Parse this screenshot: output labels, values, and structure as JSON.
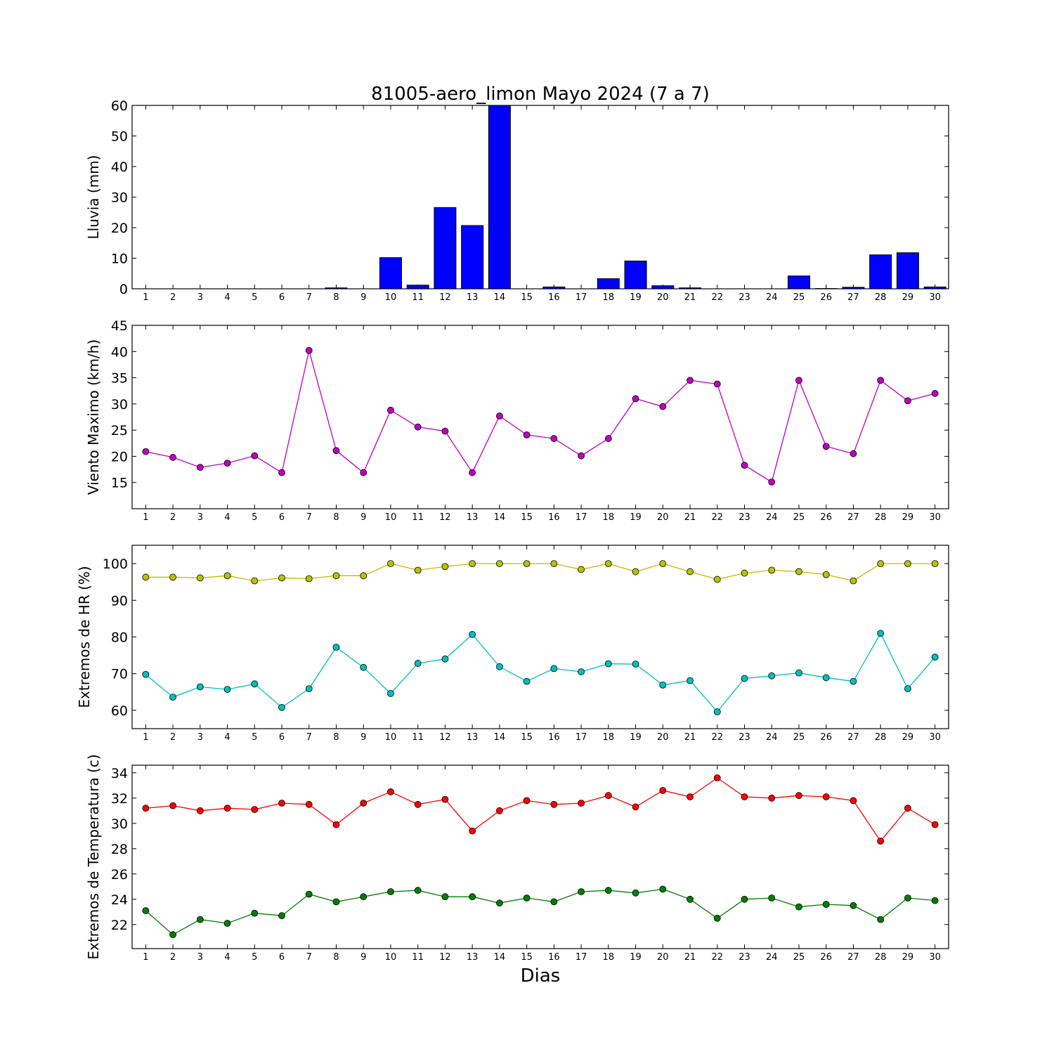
{
  "title": "81005-aero_limon Mayo 2024  (7 a 7)",
  "xlabel": "Dias",
  "chart_data": [
    {
      "type": "bar",
      "ylabel": "Lluvia (mm)",
      "ylim": [
        0,
        60
      ],
      "yticks": [
        0,
        10,
        20,
        30,
        40,
        50,
        60
      ],
      "categories": [
        "1",
        "2",
        "3",
        "4",
        "5",
        "6",
        "7",
        "8",
        "9",
        "10",
        "11",
        "12",
        "13",
        "14",
        "15",
        "16",
        "17",
        "18",
        "19",
        "20",
        "21",
        "22",
        "23",
        "24",
        "25",
        "26",
        "27",
        "28",
        "29",
        "30"
      ],
      "series": [
        {
          "color": "#0000ff",
          "values": [
            0,
            0,
            0,
            0,
            0,
            0,
            0,
            0.3,
            0,
            10.2,
            1.2,
            26.6,
            20.7,
            60,
            0,
            0.6,
            0,
            3.3,
            9.1,
            1.0,
            0.3,
            0,
            0,
            0,
            4.2,
            0.1,
            0.5,
            11.1,
            11.8,
            0.6
          ]
        }
      ]
    },
    {
      "type": "line",
      "ylabel": "Viento Maximo (km/h)",
      "ylim": [
        10,
        45
      ],
      "yticks": [
        15,
        20,
        25,
        30,
        35,
        40,
        45
      ],
      "x": [
        1,
        2,
        3,
        4,
        5,
        6,
        7,
        8,
        9,
        10,
        11,
        12,
        13,
        14,
        15,
        16,
        17,
        18,
        19,
        20,
        21,
        22,
        23,
        24,
        25,
        26,
        27,
        28,
        29,
        30
      ],
      "series": [
        {
          "color": "#bf00bf",
          "values": [
            20.9,
            19.8,
            17.9,
            18.7,
            20.1,
            16.9,
            40.2,
            21.1,
            16.9,
            28.8,
            25.6,
            24.8,
            16.9,
            27.7,
            24.1,
            23.4,
            20.1,
            23.4,
            31.0,
            29.5,
            34.5,
            33.8,
            18.3,
            15.1,
            34.5,
            21.9,
            20.5,
            34.5,
            30.6,
            32.0
          ]
        }
      ]
    },
    {
      "type": "line",
      "ylabel": "Extremos de HR (%)",
      "ylim": [
        55,
        105
      ],
      "yticks": [
        60,
        70,
        80,
        90,
        100
      ],
      "x": [
        1,
        2,
        3,
        4,
        5,
        6,
        7,
        8,
        9,
        10,
        11,
        12,
        13,
        14,
        15,
        16,
        17,
        18,
        19,
        20,
        21,
        22,
        23,
        24,
        25,
        26,
        27,
        28,
        29,
        30
      ],
      "series": [
        {
          "color": "#bfbf00",
          "values": [
            96.3,
            96.3,
            96.1,
            96.7,
            95.3,
            96.1,
            95.9,
            96.7,
            96.7,
            100,
            98.2,
            99.2,
            100,
            100,
            100,
            100,
            98.4,
            100,
            97.8,
            100,
            97.8,
            95.7,
            97.4,
            98.2,
            97.8,
            97.0,
            95.3,
            100,
            100,
            100
          ]
        },
        {
          "color": "#00bfbf",
          "values": [
            69.8,
            63.6,
            66.4,
            65.7,
            67.2,
            60.8,
            65.9,
            77.2,
            71.7,
            64.6,
            72.8,
            74.0,
            80.7,
            71.9,
            67.9,
            71.4,
            70.5,
            72.7,
            72.6,
            66.9,
            68.1,
            59.6,
            68.7,
            69.4,
            70.2,
            68.9,
            67.9,
            81.0,
            65.9,
            74.5
          ]
        }
      ]
    },
    {
      "type": "line",
      "ylabel": "Extremos de Temperatura (c)",
      "ylim": [
        20.1,
        34.6
      ],
      "yticks": [
        22,
        24,
        26,
        28,
        30,
        32,
        34
      ],
      "x": [
        1,
        2,
        3,
        4,
        5,
        6,
        7,
        8,
        9,
        10,
        11,
        12,
        13,
        14,
        15,
        16,
        17,
        18,
        19,
        20,
        21,
        22,
        23,
        24,
        25,
        26,
        27,
        28,
        29,
        30
      ],
      "series": [
        {
          "color": "#ff0000",
          "values": [
            31.2,
            31.4,
            31.0,
            31.2,
            31.1,
            31.6,
            31.5,
            29.9,
            31.6,
            32.5,
            31.5,
            31.9,
            29.4,
            31.0,
            31.8,
            31.5,
            31.6,
            32.2,
            31.3,
            32.6,
            32.1,
            33.6,
            32.1,
            32.0,
            32.2,
            32.1,
            31.8,
            28.6,
            31.2,
            29.9
          ]
        },
        {
          "color": "#007f00",
          "values": [
            23.1,
            21.2,
            22.4,
            22.1,
            22.9,
            22.7,
            24.4,
            23.8,
            24.2,
            24.6,
            24.7,
            24.2,
            24.2,
            23.7,
            24.1,
            23.8,
            24.6,
            24.7,
            24.5,
            24.8,
            24.0,
            22.5,
            24.0,
            24.1,
            23.4,
            23.6,
            23.5,
            22.4,
            24.1,
            23.9
          ]
        }
      ]
    }
  ]
}
